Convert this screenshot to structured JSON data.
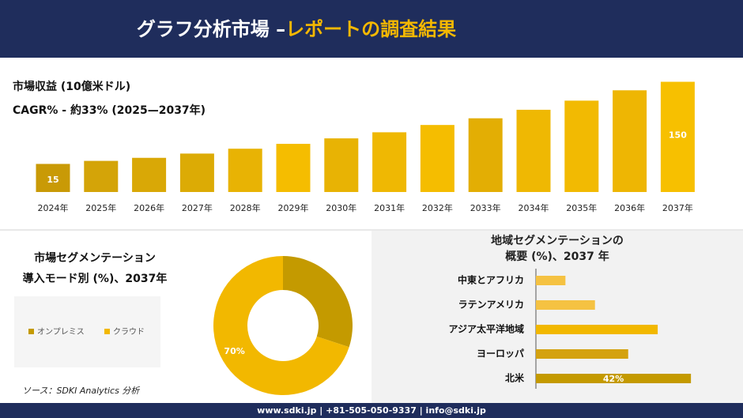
{
  "header": {
    "title_main": "グラフ分析市場 –",
    "title_accent": "レポートの調査結果"
  },
  "chart_data": [
    {
      "type": "bar",
      "title": "市場収益 (10億米ドル)",
      "subtitle": "CAGR% - 約33% (2025—2037年)",
      "categories": [
        "2024年",
        "2025年",
        "2026年",
        "2027年",
        "2028年",
        "2029年",
        "2030年",
        "2031年",
        "2032年",
        "2033年",
        "2034年",
        "2035年",
        "2036年",
        "2037年"
      ],
      "values": [
        15,
        20,
        25,
        32,
        40,
        48,
        57,
        67,
        79,
        90,
        104,
        119,
        136,
        150
      ],
      "value_labels": [
        "15",
        null,
        null,
        null,
        null,
        null,
        null,
        null,
        null,
        null,
        null,
        null,
        null,
        "150"
      ],
      "colors": [
        "#c99a06",
        "#d4a408",
        "#d9a806",
        "#dcab05",
        "#e8b304",
        "#f5bd00",
        "#e8b304",
        "#efb803",
        "#f5bd00",
        "#e3ae04",
        "#efb803",
        "#f2ba02",
        "#eeb603",
        "#f7c000"
      ]
    },
    {
      "type": "donut",
      "title": "市場セグメンテーション",
      "subtitle": "導入モード別 (%)、2037年",
      "series": [
        {
          "name": "オンプレミス",
          "color": "#c49a00",
          "value": 30
        },
        {
          "name": "クラウド",
          "color": "#f2b800",
          "value": 70
        }
      ],
      "value_labels": [
        null,
        "70%"
      ]
    },
    {
      "type": "hbar",
      "title": "地域セグメンテーションの",
      "subtitle": "概要 (%)、2037 年",
      "categories": [
        "中東とアフリカ",
        "ラテンアメリカ",
        "アジア太平洋地域",
        "ヨーロッパ",
        "北米"
      ],
      "values": [
        8,
        16,
        33,
        25,
        42
      ],
      "value_labels": [
        null,
        null,
        null,
        null,
        "42%"
      ],
      "colors": [
        "#f5c242",
        "#f5c242",
        "#f2b800",
        "#d4a20f",
        "#c49a00"
      ]
    }
  ],
  "source": "ソース：SDKI Analytics 分析",
  "footer": "www.sdki.jp | +81-505-050-9337 | info@sdki.jp"
}
